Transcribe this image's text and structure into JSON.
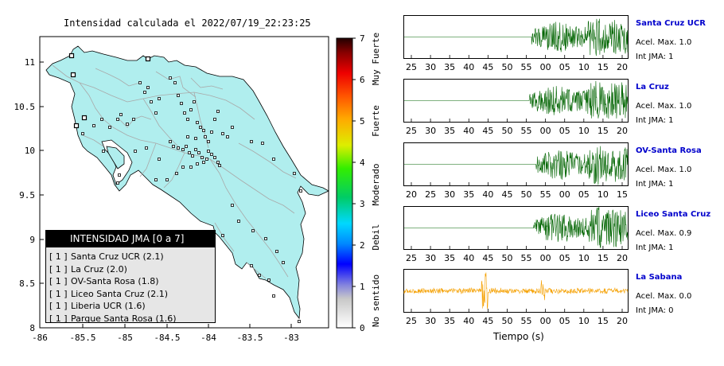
{
  "map": {
    "title": "Intensidad calculada el 2022/07/19_22:23:25",
    "x_ticks": [
      "-86",
      "-85.5",
      "-85",
      "-84.5",
      "-84",
      "-83.5",
      "-83"
    ],
    "y_ticks": [
      "11",
      "10.5",
      "10",
      "9.5",
      "9",
      "8.5",
      "8"
    ],
    "land_color": "#b0eeee",
    "road_color": "#a9a9a9"
  },
  "color_scale": {
    "ticks": [
      "7",
      "6",
      "5",
      "4",
      "3",
      "2",
      "1",
      "0"
    ],
    "category_labels": [
      "Muy Fuerte",
      "Fuerte",
      "Moderado",
      "Debil",
      "No sentido"
    ]
  },
  "legend": {
    "header": "INTENSIDAD JMA [0 a 7]",
    "items": [
      {
        "int": "[ 1 ]",
        "label": "Santa Cruz UCR (2.1)"
      },
      {
        "int": "[ 1 ]",
        "label": "La Cruz (2.0)"
      },
      {
        "int": "[ 1 ]",
        "label": "OV-Santa Rosa (1.8)"
      },
      {
        "int": "[ 1 ]",
        "label": "Liceo Santa Cruz (2.1)"
      },
      {
        "int": "[ 1 ]",
        "label": "Liberia UCR (1.6)"
      },
      {
        "int": "[ 1 ]",
        "label": "Parque Santa Rosa (1.6)"
      }
    ]
  },
  "traces": [
    {
      "name": "Santa Cruz UCR",
      "accel": "Acel. Max. 1.0",
      "int": "Int JMA: 1",
      "ticks": [
        "25",
        "30",
        "35",
        "40",
        "45",
        "50",
        "55",
        "00",
        "05",
        "10",
        "15",
        "20"
      ],
      "color": "#006400",
      "onset": 0.57
    },
    {
      "name": "La Cruz",
      "accel": "Acel. Max. 1.0",
      "int": "Int JMA: 1",
      "ticks": [
        "25",
        "30",
        "35",
        "40",
        "45",
        "50",
        "55",
        "00",
        "05",
        "10",
        "15",
        "20"
      ],
      "color": "#006400",
      "onset": 0.56
    },
    {
      "name": "OV-Santa Rosa",
      "accel": "Acel. Max. 1.0",
      "int": "Int JMA: 1",
      "ticks": [
        "20",
        "25",
        "30",
        "35",
        "40",
        "45",
        "50",
        "55",
        "00",
        "05",
        "10",
        "15"
      ],
      "color": "#006400",
      "onset": 0.59
    },
    {
      "name": "Liceo Santa Cruz",
      "accel": "Acel. Max. 0.9",
      "int": "Int JMA: 1",
      "ticks": [
        "25",
        "30",
        "35",
        "40",
        "45",
        "50",
        "55",
        "00",
        "05",
        "10",
        "15",
        "20"
      ],
      "color": "#006400",
      "onset": 0.58
    },
    {
      "name": "La Sabana",
      "accel": "Acel. Max. 0.0",
      "int": "Int JMA: 0",
      "ticks": [
        "25",
        "30",
        "35",
        "40",
        "45",
        "50",
        "55",
        "00",
        "05",
        "10",
        "15",
        "20"
      ],
      "color": "#f5a000",
      "onset": 0.0
    }
  ],
  "xlabel": "Tiempo (s)"
}
